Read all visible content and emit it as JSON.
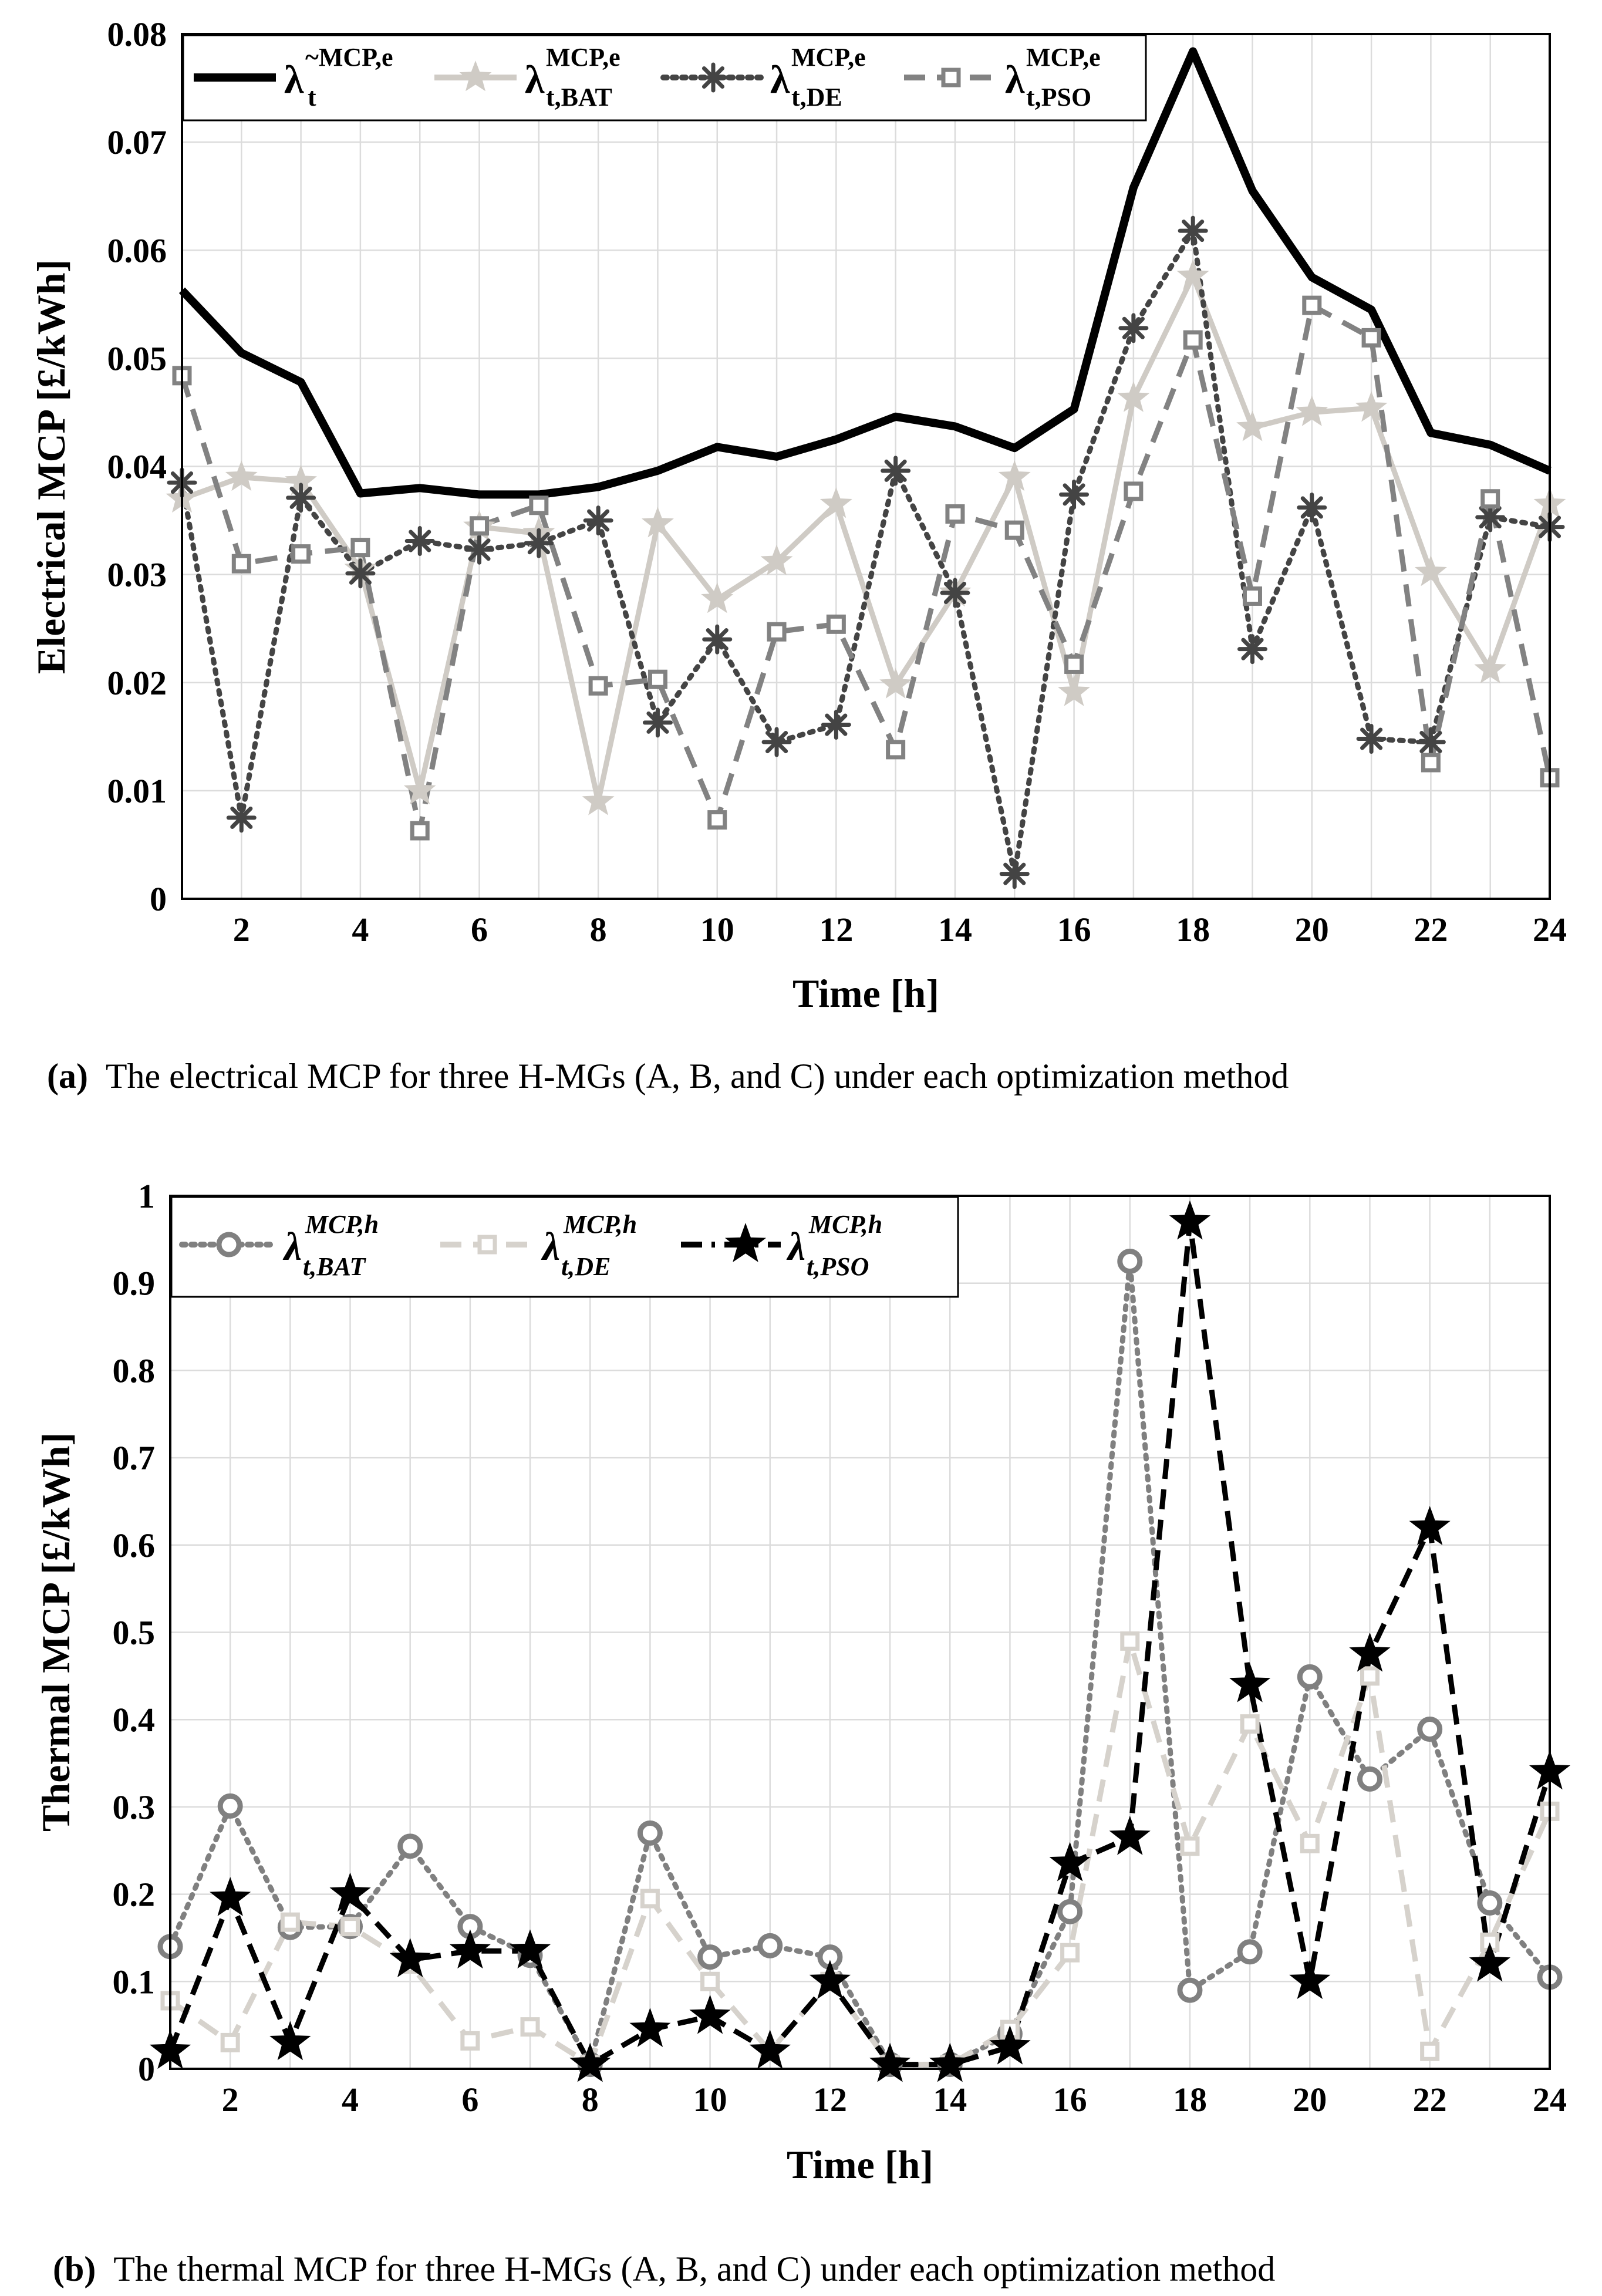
{
  "chart_data": [
    {
      "type": "line",
      "panel": "a",
      "xlabel": "Time [h]",
      "ylabel": "Electrical MCP [£/kWh]",
      "xlim": [
        1,
        24
      ],
      "ylim": [
        0,
        0.08
      ],
      "xticks": [
        "2",
        "4",
        "6",
        "8",
        "10",
        "12",
        "14",
        "16",
        "18",
        "20",
        "22",
        "24"
      ],
      "yticks": [
        "0",
        "0.01",
        "0.02",
        "0.03",
        "0.04",
        "0.05",
        "0.06",
        "0.07",
        "0.08"
      ],
      "grid": true,
      "legend_position": "top",
      "x": [
        1,
        2,
        3,
        4,
        5,
        6,
        7,
        8,
        9,
        10,
        11,
        12,
        13,
        14,
        15,
        16,
        17,
        18,
        19,
        20,
        21,
        22,
        23,
        24
      ],
      "series": [
        {
          "name": "λ_t^{~MCP,e}",
          "legend_symbol": "λ",
          "legend_sup": "~MCP,e",
          "legend_sub": "t",
          "color": "#000000",
          "values": [
            0.0563,
            0.0505,
            0.0478,
            0.0375,
            0.038,
            0.0374,
            0.0374,
            0.0381,
            0.0396,
            0.0418,
            0.0409,
            0.0425,
            0.0446,
            0.0437,
            0.0417,
            0.0453,
            0.0658,
            0.0784,
            0.0655,
            0.0575,
            0.0545,
            0.0431,
            0.042,
            0.0396
          ]
        },
        {
          "name": "λ_{t,BAT}^{MCP,e}",
          "legend_symbol": "λ",
          "legend_sup": "MCP,e",
          "legend_sub": "t,BAT",
          "color": "#cfcbc5",
          "values": [
            0.037,
            0.039,
            0.0386,
            0.0305,
            0.01,
            0.0344,
            0.0338,
            0.009,
            0.0347,
            0.0277,
            0.0312,
            0.0365,
            0.0198,
            0.0283,
            0.039,
            0.0191,
            0.0463,
            0.0576,
            0.0436,
            0.045,
            0.0454,
            0.0302,
            0.0212,
            0.0365
          ]
        },
        {
          "name": "λ_{t,DE}^{MCP,e}",
          "legend_symbol": "λ",
          "legend_sup": "MCP,e",
          "legend_sub": "t,DE",
          "color": "#444444",
          "values": [
            0.0385,
            0.0075,
            0.0371,
            0.0301,
            0.0331,
            0.0323,
            0.0329,
            0.035,
            0.0163,
            0.024,
            0.0145,
            0.0161,
            0.0396,
            0.0283,
            0.0023,
            0.0374,
            0.0528,
            0.0618,
            0.0231,
            0.0362,
            0.0148,
            0.0145,
            0.0353,
            0.0344
          ]
        },
        {
          "name": "λ_{t,PSO}^{MCP,e}",
          "legend_symbol": "λ",
          "legend_sup": "MCP,e",
          "legend_sub": "t,PSO",
          "color": "#828282",
          "values": [
            0.0484,
            0.031,
            0.0319,
            0.0325,
            0.0063,
            0.0345,
            0.0364,
            0.0197,
            0.0203,
            0.0073,
            0.0247,
            0.0254,
            0.0138,
            0.0356,
            0.0341,
            0.0217,
            0.0377,
            0.0517,
            0.028,
            0.0549,
            0.0519,
            0.0126,
            0.037,
            0.0112
          ]
        }
      ]
    },
    {
      "type": "line",
      "panel": "b",
      "xlabel": "Time [h]",
      "ylabel": "Thermal MCP [£/kWh]",
      "xlim": [
        1,
        24
      ],
      "ylim": [
        0,
        1
      ],
      "xticks": [
        "2",
        "4",
        "6",
        "8",
        "10",
        "12",
        "14",
        "16",
        "18",
        "20",
        "22",
        "24"
      ],
      "yticks": [
        "0",
        "0.1",
        "0.2",
        "0.3",
        "0.4",
        "0.5",
        "0.6",
        "0.7",
        "0.8",
        "0.9",
        "1"
      ],
      "grid": true,
      "legend_position": "top-left",
      "x": [
        1,
        2,
        3,
        4,
        5,
        6,
        7,
        8,
        9,
        10,
        11,
        12,
        13,
        14,
        15,
        16,
        17,
        18,
        19,
        20,
        21,
        22,
        23,
        24
      ],
      "series": [
        {
          "name": "λ_{t,BAT}^{MCP,h}",
          "legend_symbol": "λ",
          "legend_sup": "MCP,h",
          "legend_sub": "t,BAT",
          "color": "#808080",
          "values": [
            0.14,
            0.301,
            0.162,
            0.163,
            0.255,
            0.163,
            0.13,
            0.005,
            0.27,
            0.128,
            0.141,
            0.128,
            0.005,
            0.005,
            0.04,
            0.18,
            0.925,
            0.09,
            0.134,
            0.449,
            0.332,
            0.389,
            0.19,
            0.105
          ]
        },
        {
          "name": "λ_{t,DE}^{MCP,h}",
          "legend_symbol": "λ",
          "legend_sup": "MCP,h",
          "legend_sub": "t,DE",
          "color": "#d6d2cc",
          "values": [
            0.078,
            0.03,
            0.168,
            0.163,
            0.12,
            0.032,
            0.048,
            0.005,
            0.195,
            0.1,
            0.02,
            0.1,
            0.005,
            0.005,
            0.045,
            0.133,
            0.49,
            0.255,
            0.395,
            0.258,
            0.45,
            0.02,
            0.145,
            0.295
          ]
        },
        {
          "name": "λ_{t,PSO}^{MCP,h}",
          "legend_symbol": "λ",
          "legend_sup": "MCP,h",
          "legend_sub": "t,PSO",
          "color": "#000000",
          "values": [
            0.02,
            0.195,
            0.03,
            0.2,
            0.125,
            0.135,
            0.135,
            0.005,
            0.045,
            0.06,
            0.02,
            0.1,
            0.005,
            0.005,
            0.025,
            0.235,
            0.265,
            0.97,
            0.44,
            0.1,
            0.475,
            0.62,
            0.12,
            0.34
          ]
        }
      ]
    }
  ],
  "captions": {
    "a_tag": "(a)",
    "a_text": "The electrical MCP for three H-MGs (A, B, and C) under each optimization method",
    "b_tag": "(b)",
    "b_text": "The thermal MCP for three H-MGs (A, B, and C) under each optimization method"
  }
}
